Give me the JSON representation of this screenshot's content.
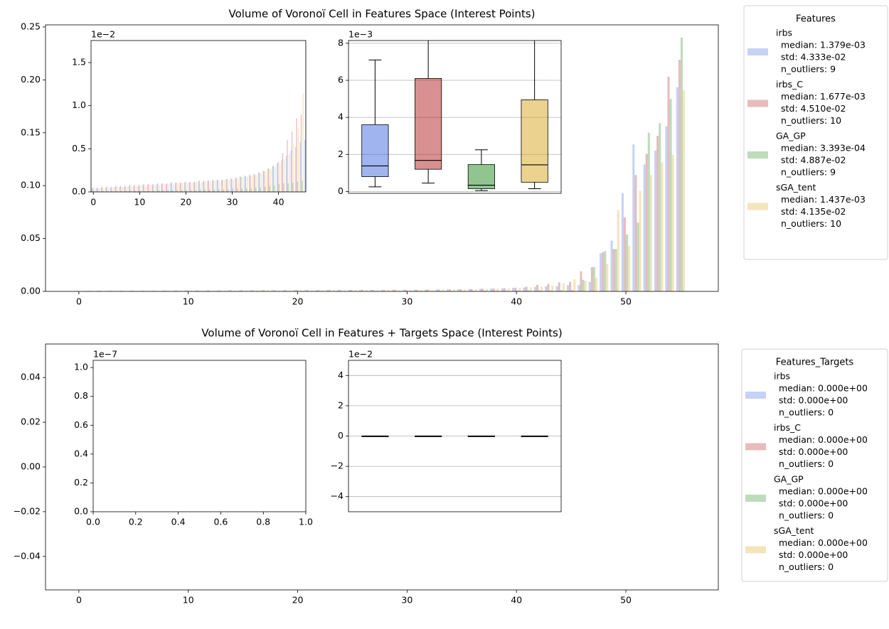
{
  "chart_data": [
    {
      "type": "bar",
      "title": "Volume of Voronoï Cell in Features Space (Interest Points)",
      "legend_title": "Features",
      "xlim": [
        -3.05,
        58.45
      ],
      "xticks": [
        0,
        10,
        20,
        30,
        40,
        50
      ],
      "ylim": [
        0,
        0.252
      ],
      "yticks": [
        {
          "value": 0,
          "label": "0.00"
        },
        {
          "value": 0.05,
          "label": "0.05"
        },
        {
          "value": 0.1,
          "label": "0.10"
        },
        {
          "value": 0.15,
          "label": "0.15"
        },
        {
          "value": 0.2,
          "label": "0.20"
        },
        {
          "value": 0.25,
          "label": "0.25"
        }
      ],
      "series": [
        {
          "name": "irbs",
          "color": "#4169e1",
          "legend_lines": [
            "median: 1.379e-03",
            "std: 4.333e-02",
            "n_outliers: 9"
          ],
          "values": [
            0.0004,
            0.0004,
            0.0005,
            0.0005,
            0.0005,
            0.0006,
            0.0006,
            0.0006,
            0.0007,
            0.0007,
            0.0007,
            0.0008,
            0.0008,
            0.0008,
            0.0009,
            0.0009,
            0.0009,
            0.001,
            0.001,
            0.001,
            0.0011,
            0.0011,
            0.0011,
            0.0012,
            0.0012,
            0.0013,
            0.0013,
            0.0014,
            0.0014,
            0.0015,
            0.0016,
            0.0017,
            0.0018,
            0.0019,
            0.002,
            0.0021,
            0.0023,
            0.0025,
            0.0027,
            0.003,
            0.0033,
            0.0037,
            0.0042,
            0.0048,
            0.0052,
            0.0058,
            0.006,
            0.009,
            0.036,
            0.048,
            0.093,
            0.139,
            0.12,
            0.133,
            0.156,
            0.193
          ]
        },
        {
          "name": "irbs_C",
          "color": "#b22222",
          "legend_lines": [
            "median: 1.677e-03",
            "std: 4.510e-02",
            "n_outliers: 10"
          ],
          "values": [
            0.0005,
            0.0005,
            0.0006,
            0.0006,
            0.0006,
            0.0007,
            0.0007,
            0.0007,
            0.0008,
            0.0008,
            0.0008,
            0.0009,
            0.0009,
            0.0009,
            0.001,
            0.001,
            0.001,
            0.0011,
            0.0011,
            0.0011,
            0.0012,
            0.0012,
            0.0012,
            0.0013,
            0.0013,
            0.0013,
            0.0014,
            0.0014,
            0.0014,
            0.0015,
            0.0015,
            0.0016,
            0.0017,
            0.0018,
            0.0019,
            0.002,
            0.0022,
            0.0024,
            0.0027,
            0.003,
            0.0035,
            0.0045,
            0.006,
            0.007,
            0.0085,
            0.009,
            0.019,
            0.023,
            0.037,
            0.04,
            0.07,
            0.11,
            0.13,
            0.147,
            0.203,
            0.219
          ]
        },
        {
          "name": "GA_GP",
          "color": "#228b22",
          "legend_lines": [
            "median: 3.393e-04",
            "std: 4.887e-02",
            "n_outliers: 9"
          ],
          "values": [
            0.0001,
            0.0001,
            0.0001,
            0.0001,
            0.0001,
            0.0001,
            0.0001,
            0.0001,
            0.0001,
            0.0001,
            0.0001,
            0.0001,
            0.0001,
            0.0001,
            0.0002,
            0.0002,
            0.0002,
            0.0002,
            0.0002,
            0.0002,
            0.0002,
            0.0002,
            0.0002,
            0.0003,
            0.0003,
            0.0003,
            0.0003,
            0.0003,
            0.0003,
            0.0003,
            0.0004,
            0.0004,
            0.0004,
            0.0004,
            0.0004,
            0.0005,
            0.0005,
            0.0006,
            0.0007,
            0.0008,
            0.0009,
            0.001,
            0.001,
            0.0011,
            0.0012,
            0.0013,
            0.011,
            0.023,
            0.038,
            0.04,
            0.054,
            0.065,
            0.15,
            0.159,
            0.182,
            0.24
          ]
        },
        {
          "name": "sGA_tent",
          "color": "#daa520",
          "legend_lines": [
            "median: 1.437e-03",
            "std: 4.135e-02",
            "n_outliers: 10"
          ],
          "values": [
            0.0004,
            0.0004,
            0.0004,
            0.0005,
            0.0005,
            0.0005,
            0.0006,
            0.0006,
            0.0006,
            0.0007,
            0.0007,
            0.0007,
            0.0008,
            0.0008,
            0.0008,
            0.0009,
            0.0009,
            0.0009,
            0.001,
            0.001,
            0.001,
            0.0011,
            0.0011,
            0.0011,
            0.0012,
            0.0012,
            0.0013,
            0.0013,
            0.0014,
            0.0014,
            0.0015,
            0.0016,
            0.0017,
            0.0018,
            0.0019,
            0.002,
            0.0022,
            0.0024,
            0.0026,
            0.0029,
            0.0033,
            0.0038,
            0.0044,
            0.0055,
            0.0075,
            0.0115,
            0.01,
            0.013,
            0.026,
            0.077,
            0.043,
            0.095,
            0.11,
            0.122,
            0.129,
            0.19
          ]
        }
      ],
      "insets": [
        {
          "type": "bar",
          "offset_label": "1e−2",
          "xlim": [
            -0.5,
            45.9
          ],
          "xticks": [
            0,
            10,
            20,
            30,
            40
          ],
          "ylim": [
            0,
            0.01756
          ],
          "yticks": [
            {
              "value": 0,
              "label": "0.0"
            },
            {
              "value": 0.005,
              "label": "0.5"
            },
            {
              "value": 0.01,
              "label": "1.0"
            },
            {
              "value": 0.015,
              "label": "1.5"
            }
          ]
        },
        {
          "type": "box",
          "offset_label": "1e−3",
          "grid": true,
          "xlim": [
            0.5,
            4.5
          ],
          "ylim": [
            -0.0001,
            0.00815
          ],
          "yticks": [
            {
              "value": 0,
              "label": "0"
            },
            {
              "value": 0.002,
              "label": "2"
            },
            {
              "value": 0.004,
              "label": "4"
            },
            {
              "value": 0.006,
              "label": "6"
            },
            {
              "value": 0.008,
              "label": "8"
            }
          ],
          "boxes": [
            {
              "whislo": 0.00025,
              "q1": 0.0008,
              "med": 0.001379,
              "q3": 0.0036,
              "whishi": 0.0071
            },
            {
              "whislo": 0.00045,
              "q1": 0.0012,
              "med": 0.001677,
              "q3": 0.0061,
              "whishi": 0.0095
            },
            {
              "whislo": 5e-05,
              "q1": 0.00015,
              "med": 0.000339,
              "q3": 0.00145,
              "whishi": 0.00225
            },
            {
              "whislo": 0.00015,
              "q1": 0.0005,
              "med": 0.001437,
              "q3": 0.00495,
              "whishi": 0.009
            }
          ]
        }
      ]
    },
    {
      "type": "bar",
      "title": "Volume of Voronoï Cell in Features + Targets Space (Interest Points)",
      "legend_title": "Features_Targets",
      "xlim": [
        -3.05,
        58.45
      ],
      "xticks": [
        0,
        10,
        20,
        30,
        40,
        50
      ],
      "ylim": [
        -0.055,
        0.055
      ],
      "yticks": [
        {
          "value": -0.04,
          "label": "−0.04"
        },
        {
          "value": -0.02,
          "label": "−0.02"
        },
        {
          "value": 0,
          "label": "0.00"
        },
        {
          "value": 0.02,
          "label": "0.02"
        },
        {
          "value": 0.04,
          "label": "0.04"
        }
      ],
      "series": [
        {
          "name": "irbs",
          "color": "#4169e1",
          "legend_lines": [
            "median: 0.000e+00",
            "std: 0.000e+00",
            "n_outliers: 0"
          ],
          "values": [
            0,
            0,
            0,
            0,
            0,
            0,
            0,
            0,
            0,
            0,
            0,
            0,
            0,
            0,
            0,
            0,
            0,
            0,
            0,
            0,
            0,
            0,
            0,
            0,
            0,
            0,
            0,
            0,
            0,
            0,
            0,
            0,
            0,
            0,
            0,
            0,
            0,
            0,
            0,
            0,
            0,
            0,
            0,
            0,
            0,
            0,
            0,
            0,
            0,
            0,
            0,
            0,
            0,
            0,
            0,
            0
          ]
        },
        {
          "name": "irbs_C",
          "color": "#b22222",
          "legend_lines": [
            "median: 0.000e+00",
            "std: 0.000e+00",
            "n_outliers: 0"
          ],
          "values": [
            0,
            0,
            0,
            0,
            0,
            0,
            0,
            0,
            0,
            0,
            0,
            0,
            0,
            0,
            0,
            0,
            0,
            0,
            0,
            0,
            0,
            0,
            0,
            0,
            0,
            0,
            0,
            0,
            0,
            0,
            0,
            0,
            0,
            0,
            0,
            0,
            0,
            0,
            0,
            0,
            0,
            0,
            0,
            0,
            0,
            0,
            0,
            0,
            0,
            0,
            0,
            0,
            0,
            0,
            0,
            0
          ]
        },
        {
          "name": "GA_GP",
          "color": "#228b22",
          "legend_lines": [
            "median: 0.000e+00",
            "std: 0.000e+00",
            "n_outliers: 0"
          ],
          "values": [
            0,
            0,
            0,
            0,
            0,
            0,
            0,
            0,
            0,
            0,
            0,
            0,
            0,
            0,
            0,
            0,
            0,
            0,
            0,
            0,
            0,
            0,
            0,
            0,
            0,
            0,
            0,
            0,
            0,
            0,
            0,
            0,
            0,
            0,
            0,
            0,
            0,
            0,
            0,
            0,
            0,
            0,
            0,
            0,
            0,
            0,
            0,
            0,
            0,
            0,
            0,
            0,
            0,
            0,
            0,
            0
          ]
        },
        {
          "name": "sGA_tent",
          "color": "#daa520",
          "legend_lines": [
            "median: 0.000e+00",
            "std: 0.000e+00",
            "n_outliers: 0"
          ],
          "values": [
            0,
            0,
            0,
            0,
            0,
            0,
            0,
            0,
            0,
            0,
            0,
            0,
            0,
            0,
            0,
            0,
            0,
            0,
            0,
            0,
            0,
            0,
            0,
            0,
            0,
            0,
            0,
            0,
            0,
            0,
            0,
            0,
            0,
            0,
            0,
            0,
            0,
            0,
            0,
            0,
            0,
            0,
            0,
            0,
            0,
            0,
            0,
            0,
            0,
            0,
            0,
            0,
            0,
            0,
            0,
            0
          ]
        }
      ],
      "insets": [
        {
          "type": "bar",
          "offset_label": "1e−7",
          "xlim": [
            0,
            1
          ],
          "xticks": [
            {
              "value": 0,
              "label": "0.0"
            },
            {
              "value": 0.2,
              "label": "0.2"
            },
            {
              "value": 0.4,
              "label": "0.4"
            },
            {
              "value": 0.6,
              "label": "0.6"
            },
            {
              "value": 0.8,
              "label": "0.8"
            },
            {
              "value": 1,
              "label": "1.0"
            }
          ],
          "ylim": [
            0,
            1.05e-07
          ],
          "yticks": [
            {
              "value": 0,
              "label": "0.0"
            },
            {
              "value": 2e-08,
              "label": "0.2"
            },
            {
              "value": 4e-08,
              "label": "0.4"
            },
            {
              "value": 6e-08,
              "label": "0.6"
            },
            {
              "value": 8e-08,
              "label": "0.8"
            },
            {
              "value": 1e-07,
              "label": "1.0"
            }
          ]
        },
        {
          "type": "box",
          "offset_label": "1e−2",
          "grid": true,
          "xlim": [
            0.5,
            4.5
          ],
          "ylim": [
            -0.05,
            0.05
          ],
          "yticks": [
            {
              "value": -0.04,
              "label": "−4"
            },
            {
              "value": -0.02,
              "label": "−2"
            },
            {
              "value": 0,
              "label": "0"
            },
            {
              "value": 0.02,
              "label": "2"
            },
            {
              "value": 0.04,
              "label": "4"
            }
          ],
          "boxes": [
            {
              "whislo": 0,
              "q1": 0,
              "med": 0,
              "q3": 0,
              "whishi": 0
            },
            {
              "whislo": 0,
              "q1": 0,
              "med": 0,
              "q3": 0,
              "whishi": 0
            },
            {
              "whislo": 0,
              "q1": 0,
              "med": 0,
              "q3": 0,
              "whishi": 0
            },
            {
              "whislo": 0,
              "q1": 0,
              "med": 0,
              "q3": 0,
              "whishi": 0
            }
          ]
        }
      ]
    }
  ]
}
